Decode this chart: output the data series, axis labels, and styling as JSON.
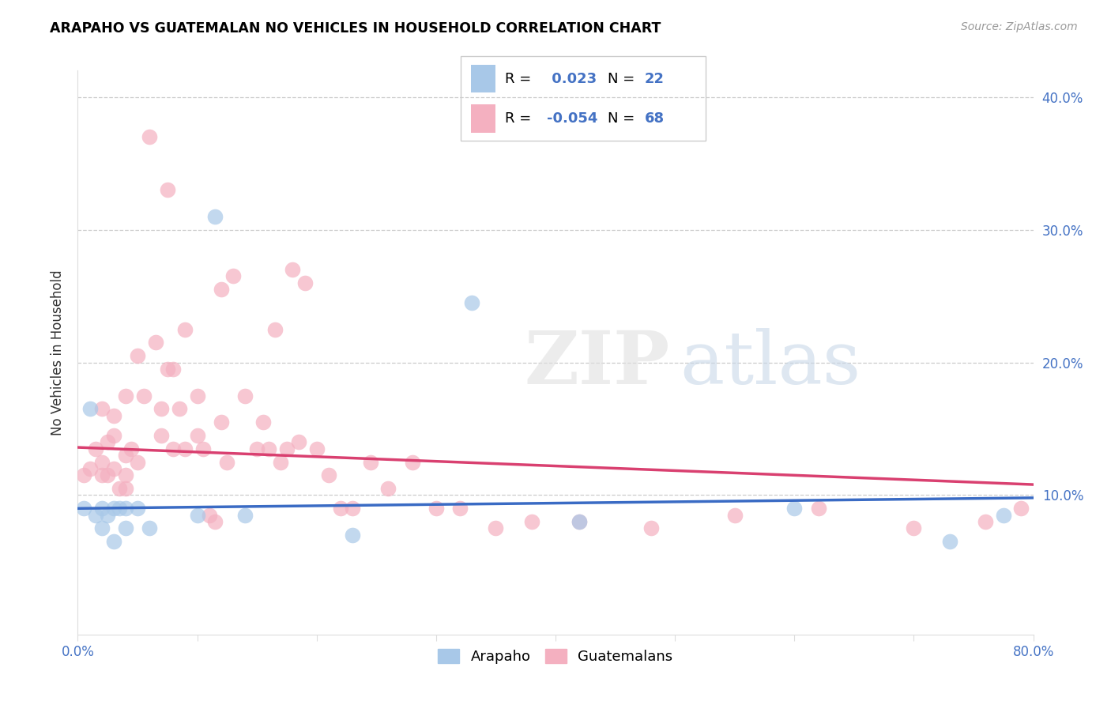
{
  "title": "ARAPAHO VS GUATEMALAN NO VEHICLES IN HOUSEHOLD CORRELATION CHART",
  "source": "Source: ZipAtlas.com",
  "ylabel": "No Vehicles in Household",
  "legend_label_1": "Arapaho",
  "legend_label_2": "Guatemalans",
  "R1": 0.023,
  "N1": 22,
  "R2": -0.054,
  "N2": 68,
  "color1": "#a8c8e8",
  "color2": "#f4b0c0",
  "line_color1": "#3a6bc4",
  "line_color2": "#d94070",
  "xlim": [
    0.0,
    0.8
  ],
  "ylim": [
    -0.005,
    0.42
  ],
  "watermark": "ZIPatlas",
  "arapaho_x": [
    0.005,
    0.01,
    0.015,
    0.02,
    0.02,
    0.025,
    0.03,
    0.03,
    0.035,
    0.04,
    0.04,
    0.05,
    0.06,
    0.1,
    0.115,
    0.14,
    0.23,
    0.33,
    0.42,
    0.6,
    0.73,
    0.775
  ],
  "arapaho_y": [
    0.09,
    0.165,
    0.085,
    0.075,
    0.09,
    0.085,
    0.09,
    0.065,
    0.09,
    0.09,
    0.075,
    0.09,
    0.075,
    0.085,
    0.31,
    0.085,
    0.07,
    0.245,
    0.08,
    0.09,
    0.065,
    0.085
  ],
  "guatemalan_x": [
    0.005,
    0.01,
    0.015,
    0.02,
    0.02,
    0.02,
    0.025,
    0.025,
    0.03,
    0.03,
    0.03,
    0.035,
    0.04,
    0.04,
    0.04,
    0.04,
    0.045,
    0.05,
    0.05,
    0.055,
    0.06,
    0.065,
    0.07,
    0.07,
    0.075,
    0.075,
    0.08,
    0.08,
    0.085,
    0.09,
    0.09,
    0.1,
    0.1,
    0.105,
    0.11,
    0.115,
    0.12,
    0.12,
    0.125,
    0.13,
    0.14,
    0.15,
    0.155,
    0.16,
    0.165,
    0.17,
    0.175,
    0.18,
    0.185,
    0.19,
    0.2,
    0.21,
    0.22,
    0.23,
    0.245,
    0.26,
    0.28,
    0.3,
    0.32,
    0.35,
    0.38,
    0.42,
    0.48,
    0.55,
    0.62,
    0.7,
    0.76,
    0.79
  ],
  "guatemalan_y": [
    0.115,
    0.12,
    0.135,
    0.115,
    0.125,
    0.165,
    0.115,
    0.14,
    0.12,
    0.16,
    0.145,
    0.105,
    0.13,
    0.115,
    0.175,
    0.105,
    0.135,
    0.125,
    0.205,
    0.175,
    0.37,
    0.215,
    0.145,
    0.165,
    0.195,
    0.33,
    0.135,
    0.195,
    0.165,
    0.135,
    0.225,
    0.145,
    0.175,
    0.135,
    0.085,
    0.08,
    0.255,
    0.155,
    0.125,
    0.265,
    0.175,
    0.135,
    0.155,
    0.135,
    0.225,
    0.125,
    0.135,
    0.27,
    0.14,
    0.26,
    0.135,
    0.115,
    0.09,
    0.09,
    0.125,
    0.105,
    0.125,
    0.09,
    0.09,
    0.075,
    0.08,
    0.08,
    0.075,
    0.085,
    0.09,
    0.075,
    0.08,
    0.09
  ],
  "reg_line1_x": [
    0.0,
    0.8
  ],
  "reg_line1_y": [
    0.09,
    0.098
  ],
  "reg_line2_x": [
    0.0,
    0.8
  ],
  "reg_line2_y": [
    0.136,
    0.108
  ]
}
